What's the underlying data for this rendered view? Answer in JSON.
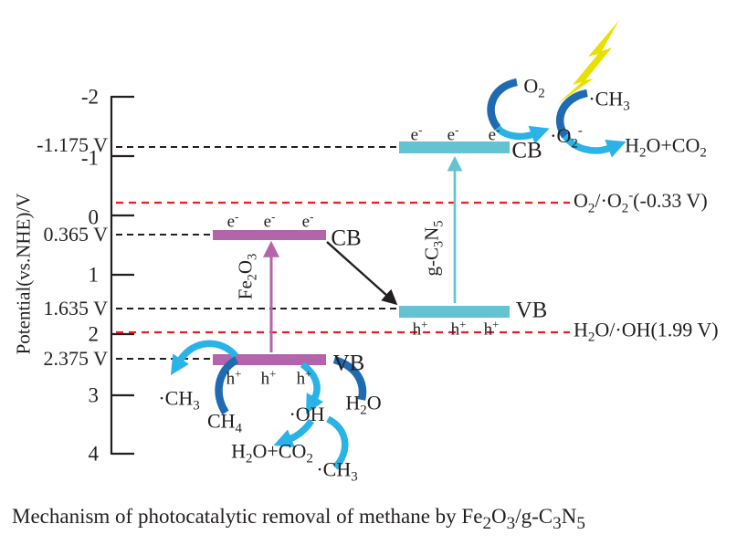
{
  "figure": {
    "caption": "Mechanism of photocatalytic removal of methane by Fe_{2}O_{3}/g-C_{3}N_{5}"
  },
  "axis": {
    "title": "Potential(vs.NHE)/V",
    "ticks": [
      "-2",
      "-1",
      "0",
      "1",
      "2",
      "3",
      "4"
    ]
  },
  "levels": {
    "gc3n5_cb_label": "-1.175 V",
    "fe2o3_cb_label": "0.365 V",
    "gc3n5_vb_label": "1.635 V",
    "fe2o3_vb_label": "2.375 V"
  },
  "redox_lines": {
    "superoxide": "O_{2}/·O_{2}^{-}(-0.33 V)",
    "hydroxyl": "H_{2}O/·OH(1.99 V)"
  },
  "semiconductors": {
    "fe2o3": {
      "name": "Fe_{2}O_{3}",
      "cb": "CB",
      "vb": "VB"
    },
    "gc3n5": {
      "name": "g-C_{3}N_{5}",
      "cb": "CB",
      "vb": "VB"
    }
  },
  "carriers": {
    "electron": "e^{-}",
    "hole": "h^{+}"
  },
  "species": {
    "o2": "O_{2}",
    "superoxide": "·O_{2}^{-}",
    "methyl_top": "·CH_{3}",
    "combustion_top": "H_{2}O+CO_{2}",
    "methyl_left": "·CH_{3}",
    "methane": "CH_{4}",
    "hydroxyl": "·OH",
    "water": "H_{2}O",
    "combustion_bottom": "H_{2}O+CO_{2}",
    "methyl_bottom": "·CH_{3}"
  },
  "colors": {
    "ink": "#231f20",
    "fe2o3_band": "#b464aa",
    "gc3n5_band": "#63c3d0",
    "arrow_dark_blue": "#1f6bb2",
    "arrow_light_blue": "#29b3e7",
    "redox_line_red": "#ed1c24",
    "lightning_yellow": "#e8e100"
  }
}
